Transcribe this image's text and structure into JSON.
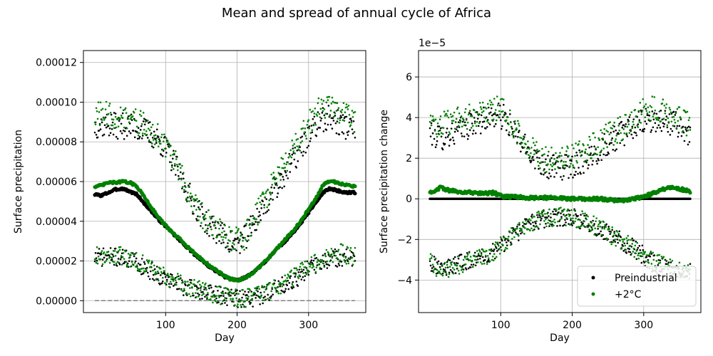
{
  "title": "Mean and spread of annual cycle of Africa",
  "colors": {
    "preindustrial": "#000000",
    "warming": "#008000",
    "grid": "#b0b0b0",
    "zero_line": "#808080"
  },
  "chart_data": [
    {
      "type": "scatter",
      "xlabel": "Day",
      "ylabel": "Surface precipitation",
      "xlim": [
        -15,
        380
      ],
      "ylim": [
        -6e-06,
        0.000126
      ],
      "xticks": [
        100,
        200,
        300
      ],
      "yticks": [
        0.0,
        2e-05,
        4e-05,
        6e-05,
        8e-05,
        0.0001,
        0.00012
      ],
      "ytick_labels": [
        "0.00000",
        "0.00002",
        "0.00004",
        "0.00006",
        "0.00008",
        "0.00010",
        "0.00012"
      ],
      "grid": true,
      "reference_line": {
        "y": 0,
        "style": "dashed"
      },
      "series": [
        {
          "name": "Preindustrial",
          "role": "mean",
          "color": "#000000",
          "x": [
            1,
            10,
            20,
            30,
            40,
            50,
            60,
            70,
            80,
            90,
            100,
            110,
            120,
            130,
            140,
            150,
            160,
            170,
            180,
            190,
            200,
            210,
            220,
            230,
            240,
            250,
            260,
            270,
            280,
            290,
            300,
            310,
            320,
            330,
            340,
            350,
            365
          ],
          "y": [
            5.35e-05,
            5.3e-05,
            5.45e-05,
            5.6e-05,
            5.65e-05,
            5.5e-05,
            5.35e-05,
            4.9e-05,
            4.5e-05,
            4.1e-05,
            3.75e-05,
            3.4e-05,
            3.05e-05,
            2.7e-05,
            2.35e-05,
            2.05e-05,
            1.75e-05,
            1.5e-05,
            1.25e-05,
            1.1e-05,
            1.03e-05,
            1.15e-05,
            1.35e-05,
            1.65e-05,
            2e-05,
            2.4e-05,
            2.75e-05,
            3.1e-05,
            3.5e-05,
            3.95e-05,
            4.45e-05,
            4.95e-05,
            5.45e-05,
            5.65e-05,
            5.55e-05,
            5.45e-05,
            5.45e-05
          ]
        },
        {
          "name": "+2°C",
          "role": "mean",
          "color": "#008000",
          "x": [
            1,
            10,
            20,
            30,
            40,
            50,
            60,
            70,
            80,
            90,
            100,
            110,
            120,
            130,
            140,
            150,
            160,
            170,
            180,
            190,
            200,
            210,
            220,
            230,
            240,
            250,
            260,
            270,
            280,
            290,
            300,
            310,
            320,
            330,
            340,
            350,
            365
          ],
          "y": [
            5.75e-05,
            5.8e-05,
            5.95e-05,
            5.95e-05,
            6e-05,
            5.95e-05,
            5.75e-05,
            5.25e-05,
            4.7e-05,
            4.2e-05,
            3.78e-05,
            3.4e-05,
            3.1e-05,
            2.75e-05,
            2.4e-05,
            2.1e-05,
            1.8e-05,
            1.55e-05,
            1.3e-05,
            1.1e-05,
            1.02e-05,
            1.12e-05,
            1.32e-05,
            1.65e-05,
            2e-05,
            2.4e-05,
            2.8e-05,
            3.2e-05,
            3.58e-05,
            4.05e-05,
            4.6e-05,
            5.15e-05,
            5.8e-05,
            6.05e-05,
            5.95e-05,
            5.85e-05,
            5.75e-05
          ]
        },
        {
          "name": "Preindustrial",
          "role": "upper spread",
          "color": "#000000",
          "x": [
            1,
            15,
            30,
            45,
            60,
            75,
            90,
            105,
            120,
            135,
            150,
            165,
            180,
            195,
            210,
            225,
            240,
            255,
            270,
            285,
            300,
            315,
            330,
            345,
            365
          ],
          "y": [
            8.8e-05,
            8.9e-05,
            8.8e-05,
            8.8e-05,
            8.7e-05,
            8.5e-05,
            8.1e-05,
            7.4e-05,
            6.3e-05,
            5.2e-05,
            4.3e-05,
            3.7e-05,
            3.3e-05,
            2.8e-05,
            3.1e-05,
            4e-05,
            4.9e-05,
            5.8e-05,
            6.6e-05,
            7.4e-05,
            8.3e-05,
            9e-05,
            9.2e-05,
            8.9e-05,
            8.6e-05
          ]
        },
        {
          "name": "+2°C",
          "role": "upper spread",
          "color": "#008000",
          "x": [
            1,
            15,
            30,
            45,
            60,
            75,
            90,
            105,
            120,
            135,
            150,
            165,
            180,
            195,
            210,
            225,
            240,
            255,
            270,
            285,
            300,
            315,
            330,
            345,
            365
          ],
          "y": [
            9.3e-05,
            9.4e-05,
            9.3e-05,
            9.2e-05,
            9e-05,
            8.7e-05,
            8.3e-05,
            7.6e-05,
            6.4e-05,
            5.2e-05,
            4.3e-05,
            3.8e-05,
            3.4e-05,
            3e-05,
            3.2e-05,
            4.2e-05,
            5.2e-05,
            6.2e-05,
            7.1e-05,
            8e-05,
            8.9e-05,
            9.6e-05,
            9.8e-05,
            9.5e-05,
            9.1e-05
          ]
        },
        {
          "name": "Preindustrial",
          "role": "lower spread",
          "color": "#000000",
          "x": [
            1,
            15,
            30,
            45,
            60,
            75,
            90,
            105,
            120,
            135,
            150,
            165,
            180,
            195,
            210,
            225,
            240,
            255,
            270,
            285,
            300,
            315,
            330,
            345,
            365
          ],
          "y": [
            2.2e-05,
            2.2e-05,
            2.2e-05,
            2.1e-05,
            1.9e-05,
            1.6e-05,
            1.3e-05,
            1e-05,
            8e-06,
            6e-06,
            4.5e-06,
            3.5e-06,
            2.5e-06,
            1.5e-06,
            1e-06,
            1.8e-06,
            3.5e-06,
            6.5e-06,
            9e-06,
            1.2e-05,
            1.6e-05,
            1.9e-05,
            2.1e-05,
            2.2e-05,
            2.1e-05
          ]
        },
        {
          "name": "+2°C",
          "role": "lower spread",
          "color": "#008000",
          "x": [
            1,
            15,
            30,
            45,
            60,
            75,
            90,
            105,
            120,
            135,
            150,
            165,
            180,
            195,
            210,
            225,
            240,
            255,
            270,
            285,
            300,
            315,
            330,
            345,
            365
          ],
          "y": [
            2.3e-05,
            2.3e-05,
            2.3e-05,
            2.2e-05,
            2e-05,
            1.7e-05,
            1.4e-05,
            1.1e-05,
            8.5e-06,
            6.5e-06,
            5e-06,
            3.5e-06,
            2.5e-06,
            1.5e-06,
            1e-06,
            2e-06,
            3.8e-06,
            7e-06,
            1e-05,
            1.3e-05,
            1.7e-05,
            2e-05,
            2.3e-05,
            2.4e-05,
            2.2e-05
          ]
        }
      ]
    },
    {
      "type": "scatter",
      "xlabel": "Day",
      "ylabel": "Surface precipitation change",
      "offset_label": "1e−5",
      "xlim": [
        -15,
        380
      ],
      "ylim": [
        -5.6,
        7.3
      ],
      "xticks": [
        100,
        200,
        300
      ],
      "yticks": [
        -4,
        -2,
        0,
        2,
        4,
        6
      ],
      "ytick_labels": [
        "−4",
        "−2",
        "0",
        "2",
        "4",
        "6"
      ],
      "grid": true,
      "legend": {
        "placement": "lower right",
        "entries": [
          "Preindustrial",
          "+2°C"
        ]
      },
      "series": [
        {
          "name": "Preindustrial",
          "role": "mean",
          "color": "#000000",
          "x": [
            1,
            365
          ],
          "y": [
            0,
            0
          ]
        },
        {
          "name": "+2°C",
          "role": "mean",
          "color": "#008000",
          "x": [
            1,
            15,
            30,
            45,
            60,
            75,
            90,
            105,
            120,
            135,
            150,
            165,
            180,
            195,
            210,
            225,
            240,
            255,
            270,
            285,
            300,
            315,
            330,
            345,
            365
          ],
          "y": [
            0.3,
            0.55,
            0.4,
            0.35,
            0.3,
            0.25,
            0.3,
            0.1,
            0.1,
            0.05,
            0.05,
            0.05,
            0.05,
            0.0,
            0.0,
            0.0,
            0.0,
            -0.05,
            -0.1,
            0.0,
            0.1,
            0.3,
            0.5,
            0.55,
            0.35
          ]
        },
        {
          "name": "Preindustrial",
          "role": "upper spread",
          "color": "#000000",
          "x": [
            1,
            15,
            30,
            45,
            60,
            75,
            90,
            105,
            120,
            135,
            150,
            165,
            180,
            195,
            210,
            225,
            240,
            255,
            270,
            285,
            300,
            315,
            330,
            345,
            365
          ],
          "y": [
            3.3,
            3.0,
            3.2,
            3.4,
            3.7,
            3.9,
            4.1,
            4.0,
            3.2,
            2.5,
            2.0,
            1.6,
            1.5,
            1.6,
            1.8,
            2.1,
            2.5,
            2.9,
            3.2,
            3.5,
            3.8,
            3.8,
            3.8,
            3.7,
            3.2
          ]
        },
        {
          "name": "+2°C",
          "role": "upper spread",
          "color": "#008000",
          "x": [
            1,
            15,
            30,
            45,
            60,
            75,
            90,
            105,
            120,
            135,
            150,
            165,
            180,
            195,
            210,
            225,
            240,
            255,
            270,
            285,
            300,
            315,
            330,
            345,
            365
          ],
          "y": [
            3.6,
            3.7,
            3.8,
            3.9,
            4.1,
            4.2,
            4.5,
            4.3,
            3.4,
            2.7,
            2.2,
            1.9,
            1.9,
            2.0,
            2.2,
            2.5,
            2.9,
            3.2,
            3.5,
            3.8,
            4.3,
            4.5,
            4.3,
            4.0,
            3.6
          ]
        },
        {
          "name": "Preindustrial",
          "role": "lower spread",
          "color": "#000000",
          "x": [
            1,
            15,
            30,
            45,
            60,
            75,
            90,
            105,
            120,
            135,
            150,
            165,
            180,
            195,
            210,
            225,
            240,
            255,
            270,
            285,
            300,
            315,
            330,
            345,
            365
          ],
          "y": [
            -3.2,
            -3.4,
            -3.3,
            -3.1,
            -3.0,
            -2.8,
            -2.6,
            -2.2,
            -1.8,
            -1.4,
            -1.1,
            -0.95,
            -0.9,
            -0.9,
            -1.0,
            -1.2,
            -1.5,
            -1.8,
            -2.1,
            -2.4,
            -2.8,
            -3.2,
            -3.4,
            -3.6,
            -3.6
          ]
        },
        {
          "name": "+2°C",
          "role": "lower spread",
          "color": "#008000",
          "x": [
            1,
            15,
            30,
            45,
            60,
            75,
            90,
            105,
            120,
            135,
            150,
            165,
            180,
            195,
            210,
            225,
            240,
            255,
            270,
            285,
            300,
            315,
            330,
            345,
            365
          ],
          "y": [
            -3.1,
            -3.6,
            -3.4,
            -3.2,
            -3.0,
            -2.9,
            -2.6,
            -2.2,
            -1.7,
            -1.4,
            -1.1,
            -0.95,
            -0.85,
            -0.9,
            -1.0,
            -1.2,
            -1.5,
            -1.8,
            -2.1,
            -2.4,
            -2.8,
            -3.1,
            -3.3,
            -3.5,
            -3.5
          ]
        }
      ]
    }
  ]
}
